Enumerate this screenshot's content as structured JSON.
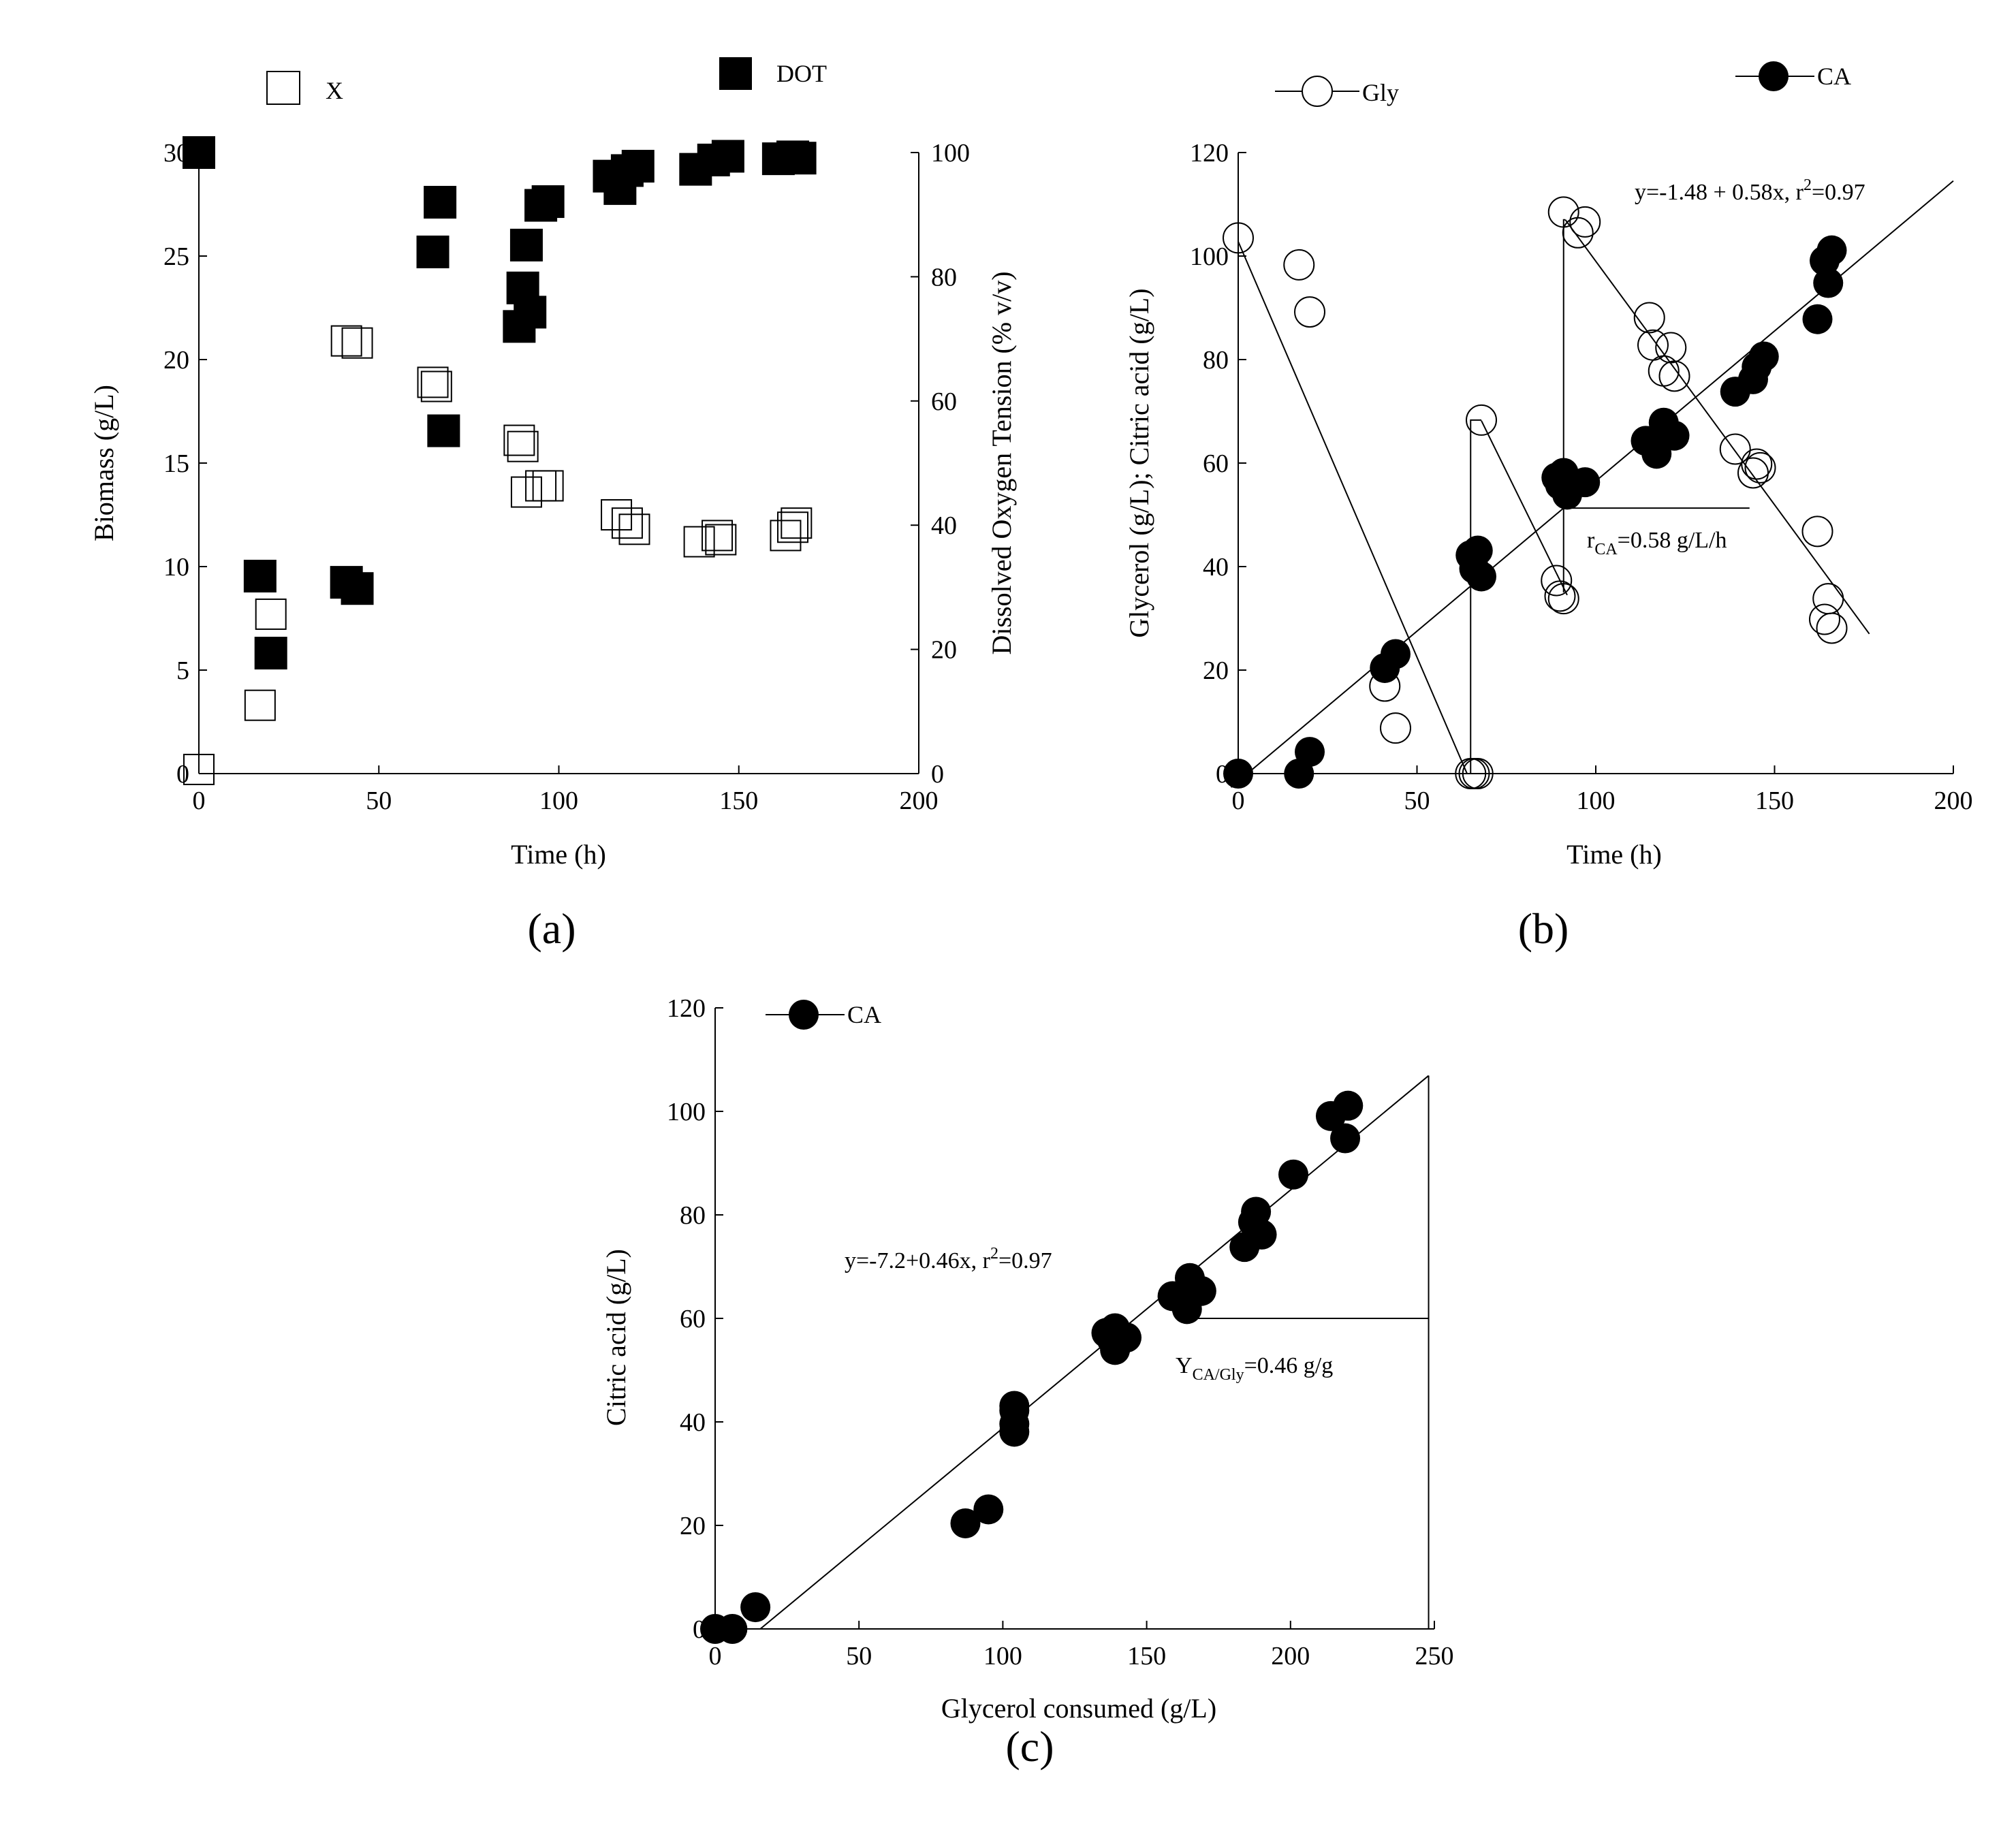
{
  "figure_labels": {
    "a": "(a)",
    "b": "(b)",
    "c": "(c)"
  },
  "chart_data": [
    {
      "id": "a",
      "type": "scatter",
      "xlabel": "Time (h)",
      "ylabel": "Biomass (g/L)",
      "ylabel_right": "Dissolved Oxygen Tension (% v/v)",
      "xlim": [
        0,
        200
      ],
      "ylim": [
        0,
        30
      ],
      "ylim_right": [
        0,
        100
      ],
      "xticks": [
        "0",
        "50",
        "100",
        "150",
        "200"
      ],
      "yticks": [
        "0",
        "5",
        "10",
        "15",
        "20",
        "25",
        "30"
      ],
      "yticks_right": [
        "0",
        "20",
        "40",
        "60",
        "80",
        "100"
      ],
      "legend": [
        "X",
        "DOT"
      ],
      "series": [
        {
          "name": "X",
          "axis": "left",
          "marker": "open-square",
          "points": [
            [
              0,
              0.2
            ],
            [
              17,
              3.3
            ],
            [
              20,
              7.7
            ],
            [
              41,
              20.9
            ],
            [
              44,
              20.8
            ],
            [
              65,
              18.9
            ],
            [
              66,
              18.7
            ],
            [
              89,
              16.1
            ],
            [
              90,
              15.8
            ],
            [
              91,
              13.6
            ],
            [
              95,
              13.9
            ],
            [
              97,
              13.9
            ],
            [
              116,
              12.5
            ],
            [
              119,
              12.1
            ],
            [
              121,
              11.8
            ],
            [
              139,
              11.2
            ],
            [
              144,
              11.5
            ],
            [
              145,
              11.3
            ],
            [
              163,
              11.5
            ],
            [
              165,
              11.9
            ],
            [
              166,
              12.1
            ]
          ]
        },
        {
          "name": "DOT",
          "axis": "right",
          "marker": "filled-square",
          "points": [
            [
              0,
              100
            ],
            [
              17,
              31.8
            ],
            [
              20,
              19.4
            ],
            [
              41,
              30.8
            ],
            [
              44,
              29.8
            ],
            [
              65,
              84
            ],
            [
              67,
              92
            ],
            [
              68,
              55.2
            ],
            [
              89,
              72
            ],
            [
              90,
              78.2
            ],
            [
              91,
              85.1
            ],
            [
              92,
              74.3
            ],
            [
              95,
              91.5
            ],
            [
              97,
              92.1
            ],
            [
              114,
              96.2
            ],
            [
              117,
              94.2
            ],
            [
              119,
              97.1
            ],
            [
              122,
              97.8
            ],
            [
              138,
              97.3
            ],
            [
              143,
              98.8
            ],
            [
              147,
              99.4
            ],
            [
              161,
              99
            ],
            [
              165,
              99.3
            ],
            [
              167,
              99.1
            ]
          ]
        }
      ]
    },
    {
      "id": "b",
      "type": "scatter",
      "xlabel": "Time (h)",
      "ylabel": "Glycerol (g/L); Citric acid (g/L)",
      "xlim": [
        0,
        200
      ],
      "ylim": [
        0,
        120
      ],
      "xticks": [
        "0",
        "50",
        "100",
        "150",
        "200"
      ],
      "yticks": [
        "0",
        "20",
        "40",
        "60",
        "80",
        "100",
        "120"
      ],
      "legend": [
        "Gly",
        "CA"
      ],
      "series": [
        {
          "name": "Gly",
          "marker": "open-circle",
          "points": [
            [
              0,
              103.5
            ],
            [
              17,
              98.3
            ],
            [
              20,
              89.2
            ],
            [
              41,
              16.9
            ],
            [
              44,
              8.8
            ],
            [
              65,
              0
            ],
            [
              66,
              0
            ],
            [
              67,
              0
            ],
            [
              68,
              68.3
            ],
            [
              89,
              37.3
            ],
            [
              90,
              34.3
            ],
            [
              91,
              33.8
            ],
            [
              91,
              108.5
            ],
            [
              95,
              104.5
            ],
            [
              97,
              106.6
            ],
            [
              115,
              88.1
            ],
            [
              116,
              82.8
            ],
            [
              119,
              77.8
            ],
            [
              121,
              82.3
            ],
            [
              122,
              76.8
            ],
            [
              139,
              62.7
            ],
            [
              144,
              58.1
            ],
            [
              145,
              59.8
            ],
            [
              146,
              59.1
            ],
            [
              162,
              46.8
            ],
            [
              164,
              29.8
            ],
            [
              165,
              33.8
            ],
            [
              166,
              28.1
            ]
          ]
        },
        {
          "name": "CA",
          "marker": "filled-circle",
          "points": [
            [
              0,
              0
            ],
            [
              17,
              0
            ],
            [
              20,
              4.2
            ],
            [
              41,
              20.4
            ],
            [
              44,
              23.1
            ],
            [
              65,
              42.2
            ],
            [
              66,
              39.6
            ],
            [
              67,
              43.1
            ],
            [
              68,
              38.1
            ],
            [
              89,
              57.2
            ],
            [
              90,
              55.8
            ],
            [
              91,
              58.1
            ],
            [
              92,
              53.9
            ],
            [
              97,
              56.3
            ],
            [
              114,
              64.3
            ],
            [
              117,
              61.8
            ],
            [
              119,
              67.8
            ],
            [
              122,
              65.3
            ],
            [
              139,
              73.8
            ],
            [
              144,
              76.2
            ],
            [
              145,
              78.6
            ],
            [
              147,
              80.6
            ],
            [
              162,
              87.8
            ],
            [
              164,
              99.1
            ],
            [
              165,
              94.8
            ],
            [
              166,
              101.1
            ]
          ]
        }
      ],
      "fit_lines": [
        {
          "x": [
            -2,
            200
          ],
          "y": [
            -2.64,
            114.52
          ]
        },
        {
          "x": [
            0,
            64
          ],
          "y": [
            102.8,
            0
          ]
        },
        {
          "x": [
            68,
            92
          ],
          "y": [
            68.2,
            34.5
          ]
        },
        {
          "x": [
            91.5,
            176.5
          ],
          "y": [
            107,
            27
          ]
        }
      ],
      "step_lines": [
        {
          "x": [
            65,
            65,
            68
          ],
          "y": [
            0,
            68.3,
            68.3
          ]
        },
        {
          "x": [
            91,
            91,
            91.5
          ],
          "y": [
            35,
            107,
            107
          ]
        }
      ],
      "slope_marker": {
        "x": [
          91.5,
          143
        ],
        "y": [
          51.3,
          51.3
        ]
      },
      "equation": "y=-1.48 + 0.58x, r",
      "equation_sup": "2",
      "equation_tail": "=0.97",
      "rate_label": "r",
      "rate_sub": "CA",
      "rate_value": "=0.58 g/L/h"
    },
    {
      "id": "c",
      "type": "scatter",
      "xlabel": "Glycerol consumed (g/L)",
      "ylabel": "Citric acid (g/L)",
      "xlim": [
        0,
        250
      ],
      "ylim": [
        0,
        120
      ],
      "xticks": [
        "0",
        "50",
        "100",
        "150",
        "200",
        "250"
      ],
      "yticks": [
        "0",
        "20",
        "40",
        "60",
        "80",
        "100",
        "120"
      ],
      "legend": [
        "CA"
      ],
      "series": [
        {
          "name": "CA",
          "marker": "filled-circle",
          "points": [
            [
              0,
              0
            ],
            [
              6,
              0
            ],
            [
              14,
              4.2
            ],
            [
              87,
              20.4
            ],
            [
              95,
              23.1
            ],
            [
              104,
              42.2
            ],
            [
              104,
              39.6
            ],
            [
              104,
              43.1
            ],
            [
              104,
              38.1
            ],
            [
              136,
              57.2
            ],
            [
              138,
              55.8
            ],
            [
              139,
              58.1
            ],
            [
              139,
              53.9
            ],
            [
              143,
              56.3
            ],
            [
              159,
              64.3
            ],
            [
              164,
              61.8
            ],
            [
              165,
              67.8
            ],
            [
              169,
              65.3
            ],
            [
              184,
              73.8
            ],
            [
              187,
              78.6
            ],
            [
              188,
              80.6
            ],
            [
              190,
              76.2
            ],
            [
              201,
              87.8
            ],
            [
              214,
              99.1
            ],
            [
              219,
              94.8
            ],
            [
              220,
              101.1
            ]
          ]
        }
      ],
      "fit_lines": [
        {
          "x": [
            15.7,
            248
          ],
          "y": [
            0,
            106.9
          ]
        }
      ],
      "slope_marker": {
        "x": [
          165,
          248
        ],
        "y": [
          60,
          60
        ]
      },
      "equation": "y=-7.2+0.46x, r",
      "equation_sup": "2",
      "equation_tail": "=0.97",
      "yield_label": "Y",
      "yield_sub": "CA/Gly",
      "yield_value": "=0.46 g/g"
    }
  ]
}
